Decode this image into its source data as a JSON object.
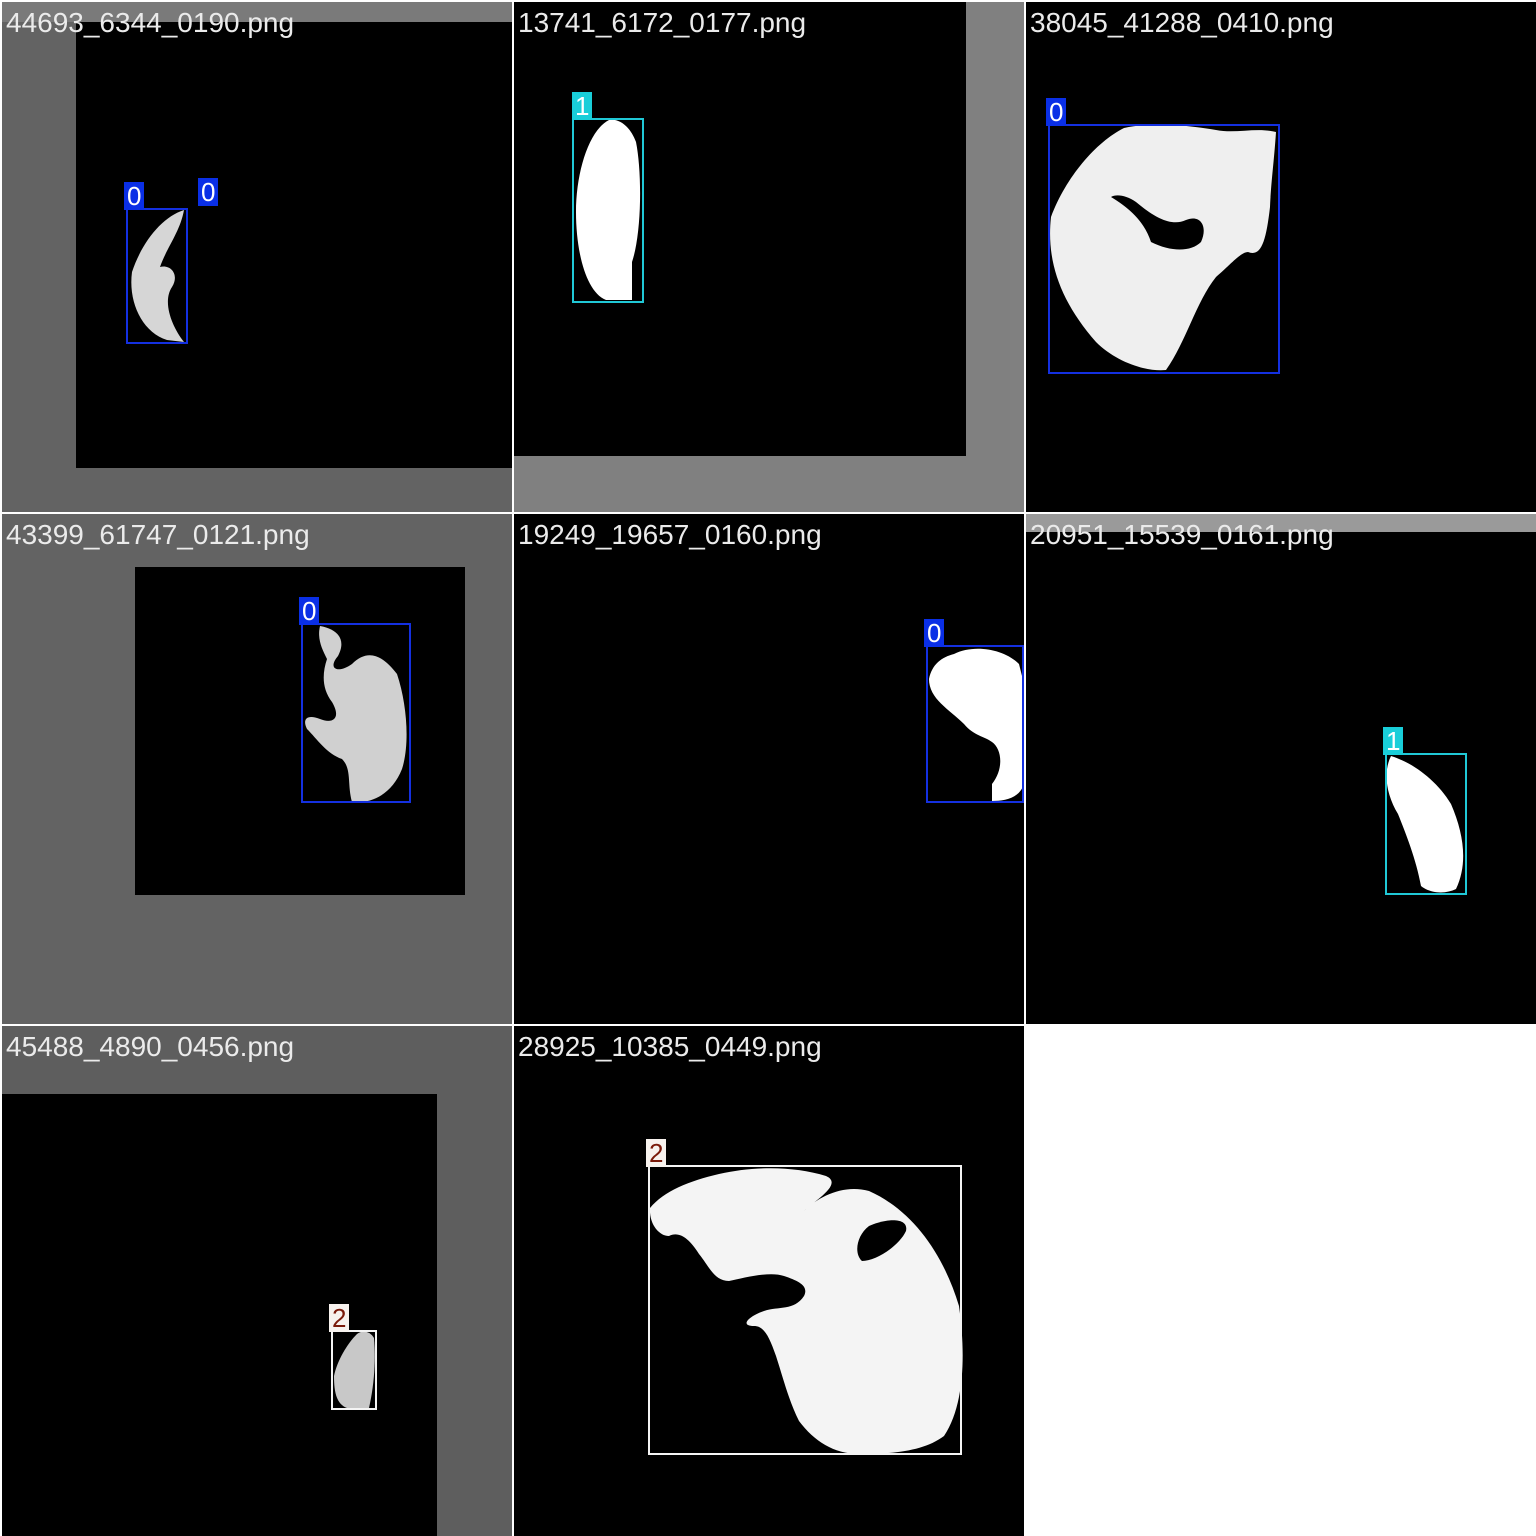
{
  "tiles": [
    {
      "filename": "44693_6344_0190.png",
      "labels": [
        "0",
        "0"
      ]
    },
    {
      "filename": "13741_6172_0177.png",
      "labels": [
        "1"
      ]
    },
    {
      "filename": "38045_41288_0410.png",
      "labels": [
        "0"
      ]
    },
    {
      "filename": "43399_61747_0121.png",
      "labels": [
        "0"
      ]
    },
    {
      "filename": "19249_19657_0160.png",
      "labels": [
        "0"
      ]
    },
    {
      "filename": "20951_15539_0161.png",
      "labels": [
        "1"
      ]
    },
    {
      "filename": "45488_4890_0456.png",
      "labels": [
        "2"
      ]
    },
    {
      "filename": "28925_10385_0449.png",
      "labels": [
        "2"
      ]
    }
  ],
  "colors": {
    "class_0": "#0a2fe6",
    "class_1": "#19ced9",
    "class_2": "#f7f2ee"
  }
}
